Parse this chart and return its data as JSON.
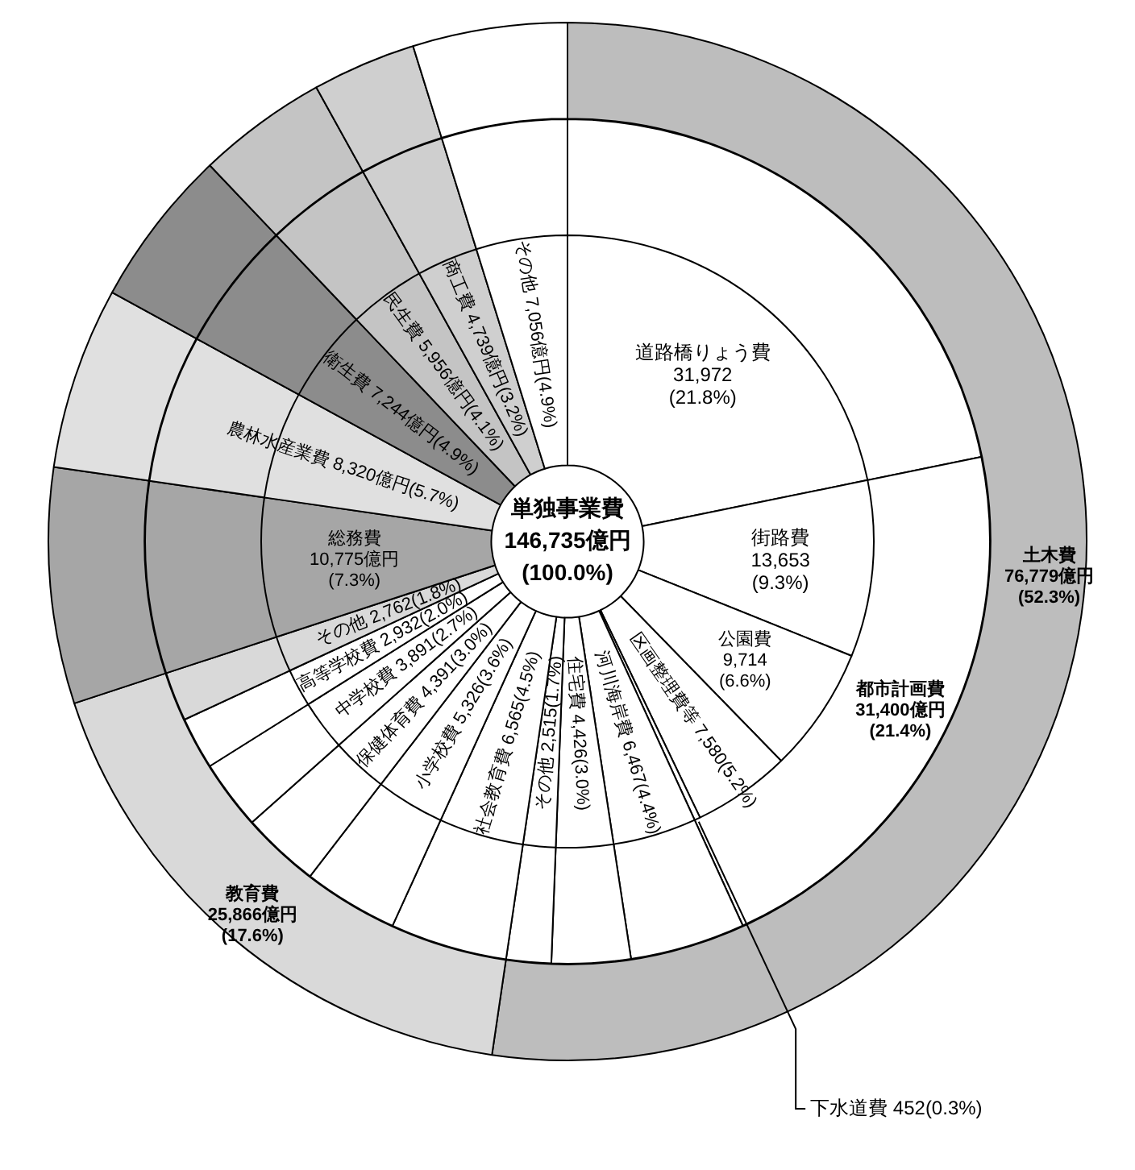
{
  "chart_data": [
    {
      "type": "donut",
      "title": "単独事業費",
      "subtitle": "146,735億円(100.0%)",
      "categories": [
        "道路橋りょう費",
        "街路費",
        "公園費",
        "区画整理費等",
        "下水道費",
        "河川海岸費",
        "住宅費",
        "その他",
        "社会教育費",
        "小学校費",
        "保健体育費",
        "中学校費",
        "高等学校費",
        "その他",
        "総務費",
        "農林水産業費",
        "衛生費",
        "民生費",
        "商工費",
        "その他"
      ],
      "values": [
        31972,
        13653,
        9714,
        7580,
        452,
        6467,
        4426,
        2515,
        6565,
        5326,
        4391,
        3891,
        2932,
        2762,
        10775,
        8320,
        7244,
        5956,
        4739,
        7056
      ],
      "value_labels": [
        "31,972(21.8%)",
        "13,653(9.3%)",
        "9,714(6.6%)",
        "7,580(5.2%)",
        "452(0.3%)",
        "6,467(4.4%)",
        "4,426(3.0%)",
        "2,515(1.7%)",
        "6,565(4.5%)",
        "5,326(3.6%)",
        "4,391(3.0%)",
        "3,891(2.7%)",
        "2,932(2.0%)",
        "2,762(1.8%)",
        "10,775億円(7.3%)",
        "8,320億円(5.7%)",
        "7,244億円(4.9%)",
        "5,956億円(4.1%)",
        "4,739億円(3.2%)",
        "7,056億円(4.9%)"
      ],
      "colors": [
        "#ffffff",
        "#ffffff",
        "#ffffff",
        "#ffffff",
        "#ffffff",
        "#ffffff",
        "#ffffff",
        "#ffffff",
        "#ffffff",
        "#ffffff",
        "#ffffff",
        "#ffffff",
        "#ffffff",
        "#d9d9d9",
        "#a6a6a6",
        "#e0e0e0",
        "#8c8c8c",
        "#c4c4c4",
        "#cfcfcf",
        "#ffffff"
      ]
    },
    {
      "type": "donut",
      "categories": [
        null,
        "都市計画費",
        null,
        null,
        null,
        null,
        null,
        null,
        null,
        null,
        null,
        null,
        null,
        null,
        null,
        null,
        null
      ],
      "values": [
        31972,
        31400,
        6467,
        4426,
        2515,
        6565,
        5326,
        4391,
        3891,
        2932,
        2762,
        10775,
        8320,
        7244,
        5956,
        4739,
        7056
      ],
      "value_labels": [
        null,
        "31,400億円(21.4%)",
        null,
        null,
        null,
        null,
        null,
        null,
        null,
        null,
        null,
        null,
        null,
        null,
        null,
        null,
        null
      ],
      "colors": [
        "#ffffff",
        "#ffffff",
        "#ffffff",
        "#ffffff",
        "#ffffff",
        "#ffffff",
        "#ffffff",
        "#ffffff",
        "#ffffff",
        "#ffffff",
        "#d9d9d9",
        "#a6a6a6",
        "#e0e0e0",
        "#8c8c8c",
        "#c4c4c4",
        "#cfcfcf",
        "#ffffff"
      ]
    },
    {
      "type": "donut",
      "categories": [
        "土木費",
        "教育費",
        null,
        null,
        null,
        null,
        null,
        null
      ],
      "values": [
        76779,
        25866,
        10775,
        8320,
        7244,
        5956,
        4739,
        7056
      ],
      "value_labels": [
        "76,779億円(52.3%)",
        "25,866億円(17.6%)",
        null,
        null,
        null,
        null,
        null,
        null
      ],
      "colors": [
        "#bdbdbd",
        "#d9d9d9",
        "#a6a6a6",
        "#e0e0e0",
        "#8c8c8c",
        "#c4c4c4",
        "#cfcfcf",
        "#ffffff"
      ]
    }
  ]
}
